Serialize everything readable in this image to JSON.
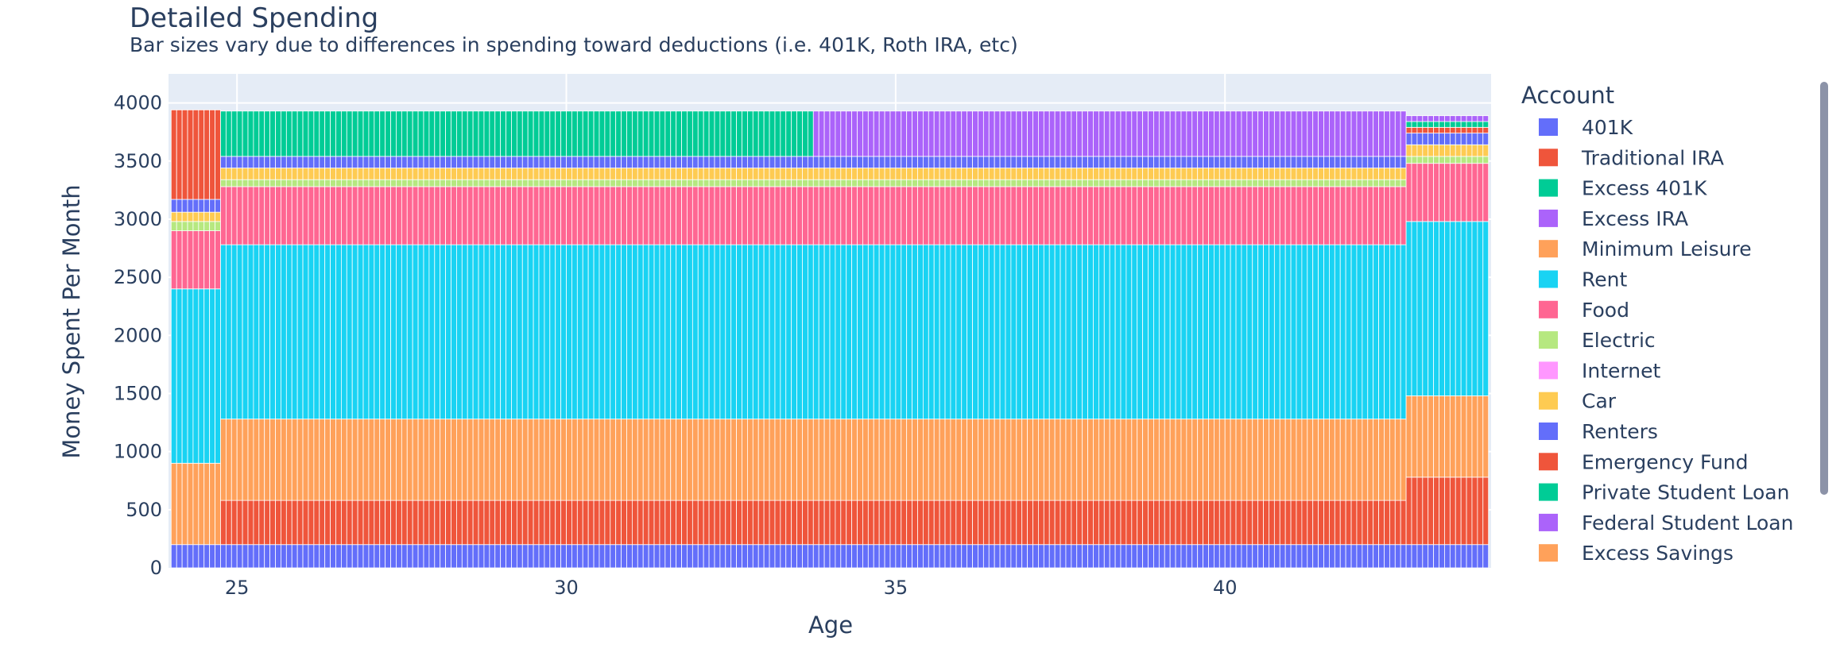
{
  "chart_data": {
    "type": "bar",
    "barmode": "stack",
    "title": "Detailed Spending",
    "subtitle": "Bar sizes vary due to differences in spending toward deductions (i.e. 401K, Roth IRA, etc)",
    "xlabel": "Age",
    "ylabel": "Money Spent Per Month",
    "xlim": [
      23.96,
      44.04
    ],
    "ylim": [
      0,
      4250
    ],
    "xticks": [
      25,
      30,
      35,
      40
    ],
    "yticks": [
      0,
      500,
      1000,
      1500,
      2000,
      2500,
      3000,
      3500,
      4000
    ],
    "grid": true,
    "legend_title": "Account",
    "legend_placement": "right",
    "x_step_months": 1,
    "periods": [
      {
        "start": 24.0,
        "end": 24.75,
        "values": [
          200,
          0,
          0,
          0,
          700,
          1500,
          500,
          80,
          0,
          80,
          110,
          770,
          0,
          0,
          0
        ]
      },
      {
        "start": 24.75,
        "end": 33.75,
        "values": [
          200,
          380,
          0,
          0,
          700,
          1500,
          500,
          60,
          0,
          100,
          100,
          0,
          390,
          0,
          0
        ]
      },
      {
        "start": 33.75,
        "end": 42.75,
        "values": [
          200,
          380,
          0,
          0,
          700,
          1500,
          500,
          60,
          0,
          100,
          100,
          0,
          0,
          390,
          0
        ]
      },
      {
        "start": 42.75,
        "end": 44.0,
        "values": [
          200,
          580,
          0,
          0,
          700,
          1500,
          500,
          60,
          0,
          100,
          100,
          50,
          50,
          50,
          0
        ]
      }
    ],
    "series": [
      {
        "name": "401K",
        "color": "#636efa"
      },
      {
        "name": "Traditional IRA",
        "color": "#EF553B"
      },
      {
        "name": "Excess 401K",
        "color": "#00cc96"
      },
      {
        "name": "Excess IRA",
        "color": "#ab63fa"
      },
      {
        "name": "Minimum Leisure",
        "color": "#FFA15A"
      },
      {
        "name": "Rent",
        "color": "#19d3f3"
      },
      {
        "name": "Food",
        "color": "#FF6692"
      },
      {
        "name": "Electric",
        "color": "#B6E880"
      },
      {
        "name": "Internet",
        "color": "#FF97FF"
      },
      {
        "name": "Car",
        "color": "#FECB52"
      },
      {
        "name": "Renters",
        "color": "#636efa"
      },
      {
        "name": "Emergency Fund",
        "color": "#EF553B"
      },
      {
        "name": "Private Student Loan",
        "color": "#00cc96"
      },
      {
        "name": "Federal Student Loan",
        "color": "#ab63fa"
      },
      {
        "name": "Excess Savings",
        "color": "#FFA15A"
      }
    ]
  },
  "colors": {
    "plot_background": "#E5ECF6",
    "grid": "#ffffff",
    "text": "#2a3f5f",
    "scrollbar": "#8c93a8"
  }
}
